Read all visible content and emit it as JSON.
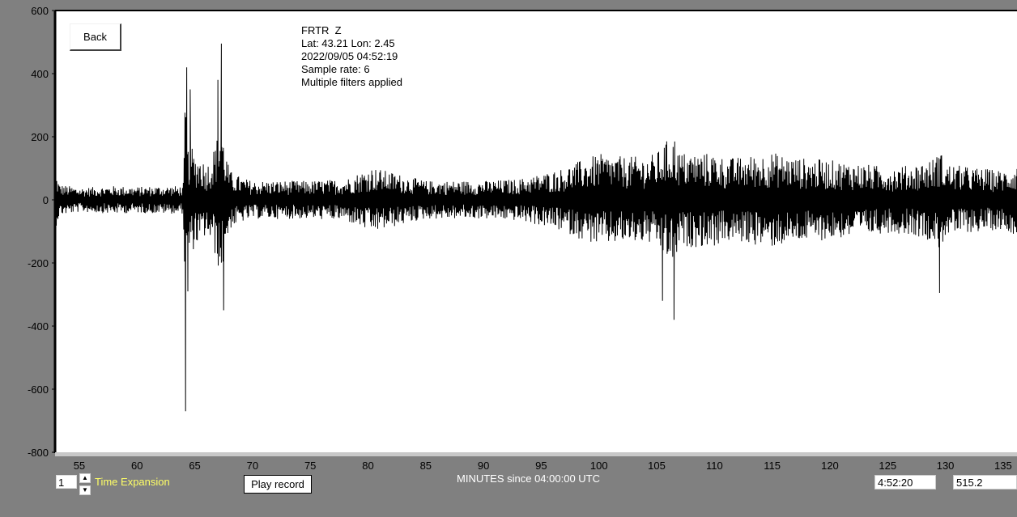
{
  "back_label": "Back",
  "station": {
    "name": "FRTR  Z",
    "location": "Lat: 43.21 Lon: 2.45",
    "datetime": "2022/09/05 04:52:19",
    "sample_rate": "Sample rate: 6",
    "filters": "Multiple filters applied"
  },
  "controls": {
    "time_expansion_value": "1",
    "time_expansion_label": "Time Expansion",
    "play_label": "Play record",
    "time_readout": "4:52:20",
    "value_readout": "515.2"
  },
  "colors": {
    "background": "#808080",
    "plot_bg": "#ffffff",
    "trace": "#000000",
    "label_yellow": "#ffff66"
  },
  "icons": {
    "spin_up": "spin-up-arrow-icon",
    "spin_down": "spin-down-arrow-icon"
  },
  "chart_data": {
    "type": "line",
    "title": "",
    "xlabel": "MINUTES since 04:00:00 UTC",
    "ylabel": "",
    "xlim": [
      52.9,
      136.2
    ],
    "ylim": [
      -800,
      600
    ],
    "x_ticks": [
      55,
      60,
      65,
      70,
      75,
      80,
      85,
      90,
      95,
      100,
      105,
      110,
      115,
      120,
      125,
      130,
      135
    ],
    "y_ticks": [
      600,
      400,
      200,
      0,
      -200,
      -400,
      -600,
      -800
    ],
    "grid": false,
    "series": [
      {
        "x": [
          52.9,
          53.3,
          55,
          58,
          60,
          62,
          64.0,
          64.2,
          64.3,
          64.4,
          64.6,
          65.0,
          65.5,
          66.0,
          66.5,
          67.0,
          67.3,
          67.5,
          68.0,
          69.0,
          70,
          75,
          78,
          80.3,
          85,
          90,
          93,
          95,
          97,
          98.5,
          100,
          102,
          104,
          105.0,
          105.5,
          106.5,
          107,
          110,
          111,
          112.5,
          115,
          117,
          120,
          122,
          125,
          127,
          129.0,
          129.5,
          130,
          132,
          135,
          136.2
        ],
        "y": [
          170,
          90,
          70,
          80,
          75,
          80,
          80,
          -670,
          420,
          -290,
          350,
          260,
          260,
          200,
          265,
          380,
          495,
          -350,
          170,
          130,
          110,
          110,
          120,
          190,
          110,
          110,
          120,
          150,
          185,
          230,
          265,
          250,
          250,
          270,
          -320,
          -380,
          275,
          270,
          240,
          250,
          275,
          245,
          230,
          215,
          190,
          200,
          240,
          -295,
          210,
          190,
          170,
          205
        ]
      }
    ]
  }
}
